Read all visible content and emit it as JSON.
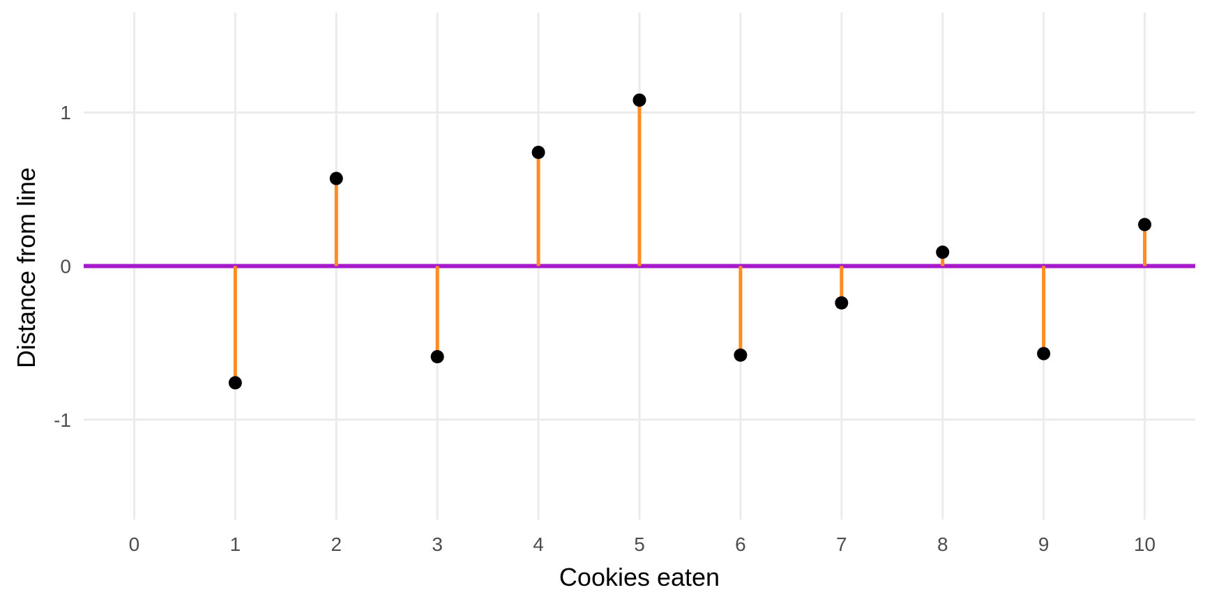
{
  "chart_data": {
    "type": "scatter",
    "title": "",
    "xlabel": "Cookies eaten",
    "ylabel": "Distance from line",
    "xlim": [
      -0.5,
      10.5
    ],
    "ylim": [
      -1.65,
      1.65
    ],
    "x_ticks": [
      0,
      1,
      2,
      3,
      4,
      5,
      6,
      7,
      8,
      9,
      10
    ],
    "x_tick_labels": [
      "0",
      "1",
      "2",
      "3",
      "4",
      "5",
      "6",
      "7",
      "8",
      "9",
      "10"
    ],
    "y_ticks": [
      -1,
      0,
      1
    ],
    "y_tick_labels": [
      "-1",
      "0",
      "1"
    ],
    "grid": true,
    "reference_line": {
      "y": 0,
      "color": "#a71ac9"
    },
    "segment_color": "#ff8c21",
    "point_color": "#000000",
    "series": [
      {
        "x": [
          1,
          2,
          3,
          4,
          5,
          6,
          7,
          8,
          9,
          10
        ],
        "y": [
          -0.76,
          0.57,
          -0.59,
          0.74,
          1.08,
          -0.58,
          -0.24,
          0.09,
          -0.57,
          0.27
        ]
      }
    ]
  }
}
